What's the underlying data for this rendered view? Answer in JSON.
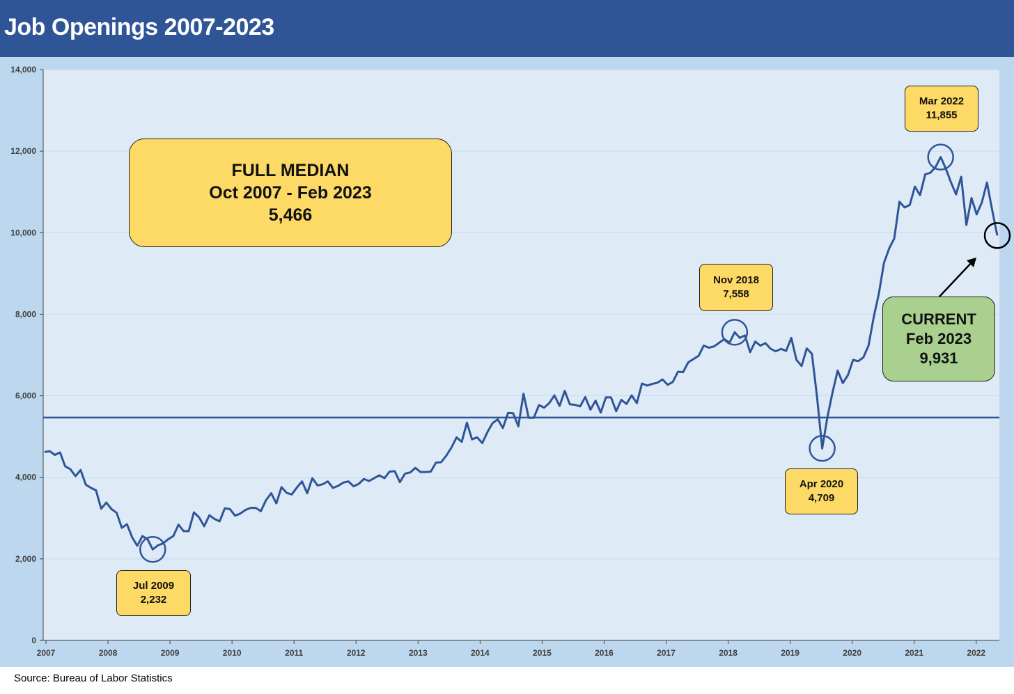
{
  "header": {
    "title": "Job Openings 2007-2023",
    "background": "#2f5597"
  },
  "footer": {
    "source": "Source: Bureau of Labor Statistics"
  },
  "annotations": {
    "median_box": {
      "line1": "FULL MEDIAN",
      "line2": "Oct 2007 - Feb 2023",
      "line3": "5,466"
    },
    "current_box": {
      "line1": "CURRENT",
      "line2": "Feb 2023",
      "line3": "9,931"
    },
    "low_2009": {
      "line1": "Jul 2009",
      "line2": "2,232"
    },
    "peak_2018": {
      "line1": "Nov 2018",
      "line2": "7,558"
    },
    "low_2020": {
      "line1": "Apr 2020",
      "line2": "4,709"
    },
    "peak_2022": {
      "line1": "Mar 2022",
      "line2": "11,855"
    }
  },
  "chart_data": {
    "type": "line",
    "title": "Job Openings 2007-2023",
    "ylim": [
      0,
      14000
    ],
    "y_ticks": [
      0,
      2000,
      4000,
      6000,
      8000,
      10000,
      12000,
      14000
    ],
    "y_tick_labels": [
      "0",
      "2,000",
      "4,000",
      "6,000",
      "8,000",
      "10,000",
      "12,000",
      "14,000"
    ],
    "x_tick_labels": [
      "2007",
      "2008",
      "2009",
      "2010",
      "2011",
      "2012",
      "2013",
      "2014",
      "2015",
      "2016",
      "2017",
      "2018",
      "2019",
      "2020",
      "2021",
      "2022"
    ],
    "grid": true,
    "line_color": "#2f5597",
    "median_value": 5466,
    "series": [
      {
        "values": [
          4620,
          4640,
          4550,
          4610,
          4270,
          4200,
          4030,
          4180,
          3820,
          3740,
          3680,
          3230,
          3380,
          3220,
          3130,
          2760,
          2850,
          2530,
          2320,
          2560,
          2480,
          2232,
          2330,
          2380,
          2480,
          2560,
          2840,
          2680,
          2680,
          3140,
          3020,
          2800,
          3070,
          2980,
          2920,
          3240,
          3220,
          3060,
          3110,
          3200,
          3250,
          3250,
          3170,
          3440,
          3610,
          3360,
          3760,
          3620,
          3580,
          3750,
          3900,
          3610,
          3980,
          3800,
          3830,
          3900,
          3740,
          3790,
          3870,
          3900,
          3780,
          3840,
          3960,
          3910,
          3980,
          4050,
          3980,
          4140,
          4150,
          3880,
          4090,
          4120,
          4230,
          4130,
          4130,
          4140,
          4360,
          4370,
          4530,
          4730,
          4980,
          4870,
          5340,
          4930,
          4980,
          4840,
          5110,
          5330,
          5420,
          5210,
          5580,
          5570,
          5250,
          6050,
          5460,
          5460,
          5770,
          5710,
          5820,
          6010,
          5750,
          6120,
          5790,
          5780,
          5740,
          5970,
          5660,
          5880,
          5590,
          5960,
          5960,
          5620,
          5900,
          5800,
          6010,
          5820,
          6300,
          6250,
          6290,
          6320,
          6400,
          6270,
          6340,
          6590,
          6580,
          6820,
          6900,
          6980,
          7230,
          7180,
          7210,
          7300,
          7390,
          7300,
          7558,
          7420,
          7480,
          7070,
          7330,
          7230,
          7290,
          7150,
          7090,
          7150,
          7100,
          7420,
          6880,
          6730,
          7160,
          7030,
          5970,
          4709,
          5470,
          6080,
          6620,
          6310,
          6510,
          6880,
          6850,
          6940,
          7230,
          7920,
          8500,
          9260,
          9610,
          9860,
          10760,
          10620,
          10680,
          11130,
          10920,
          11430,
          11470,
          11610,
          11855,
          11570,
          11240,
          10940,
          11370,
          10190,
          10850,
          10450,
          10740,
          11230,
          10560,
          9931
        ]
      }
    ]
  }
}
